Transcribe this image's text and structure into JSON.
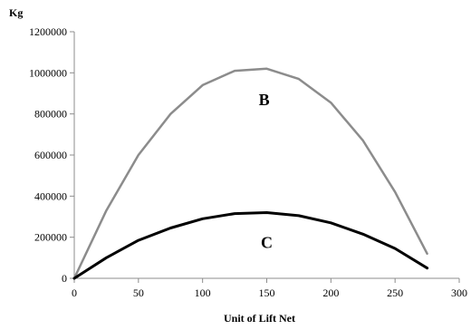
{
  "chart_data": {
    "type": "line",
    "title": "",
    "xlabel": "Unit of  Lift Net",
    "ylabel": "Kg",
    "xlim": [
      0,
      300
    ],
    "ylim": [
      0,
      1200000
    ],
    "x_ticks": [
      0,
      50,
      100,
      150,
      200,
      250,
      300
    ],
    "y_ticks": [
      0,
      200000,
      400000,
      600000,
      800000,
      1000000,
      1200000
    ],
    "grid": false,
    "legend": "none",
    "x": [
      0,
      25,
      50,
      75,
      100,
      125,
      150,
      175,
      200,
      225,
      250,
      275
    ],
    "series": [
      {
        "name": "B",
        "color": "#8c8c8c",
        "values": [
          0,
          330000,
          600000,
          800000,
          940000,
          1010000,
          1020000,
          970000,
          855000,
          670000,
          420000,
          120000
        ]
      },
      {
        "name": "C",
        "color": "#000000",
        "values": [
          0,
          100000,
          185000,
          245000,
          290000,
          315000,
          320000,
          305000,
          270000,
          215000,
          145000,
          50000
        ]
      }
    ],
    "annotations": [
      {
        "text": "B",
        "x": 148,
        "y": 870000
      },
      {
        "text": "C",
        "x": 150,
        "y": 175000
      }
    ]
  }
}
